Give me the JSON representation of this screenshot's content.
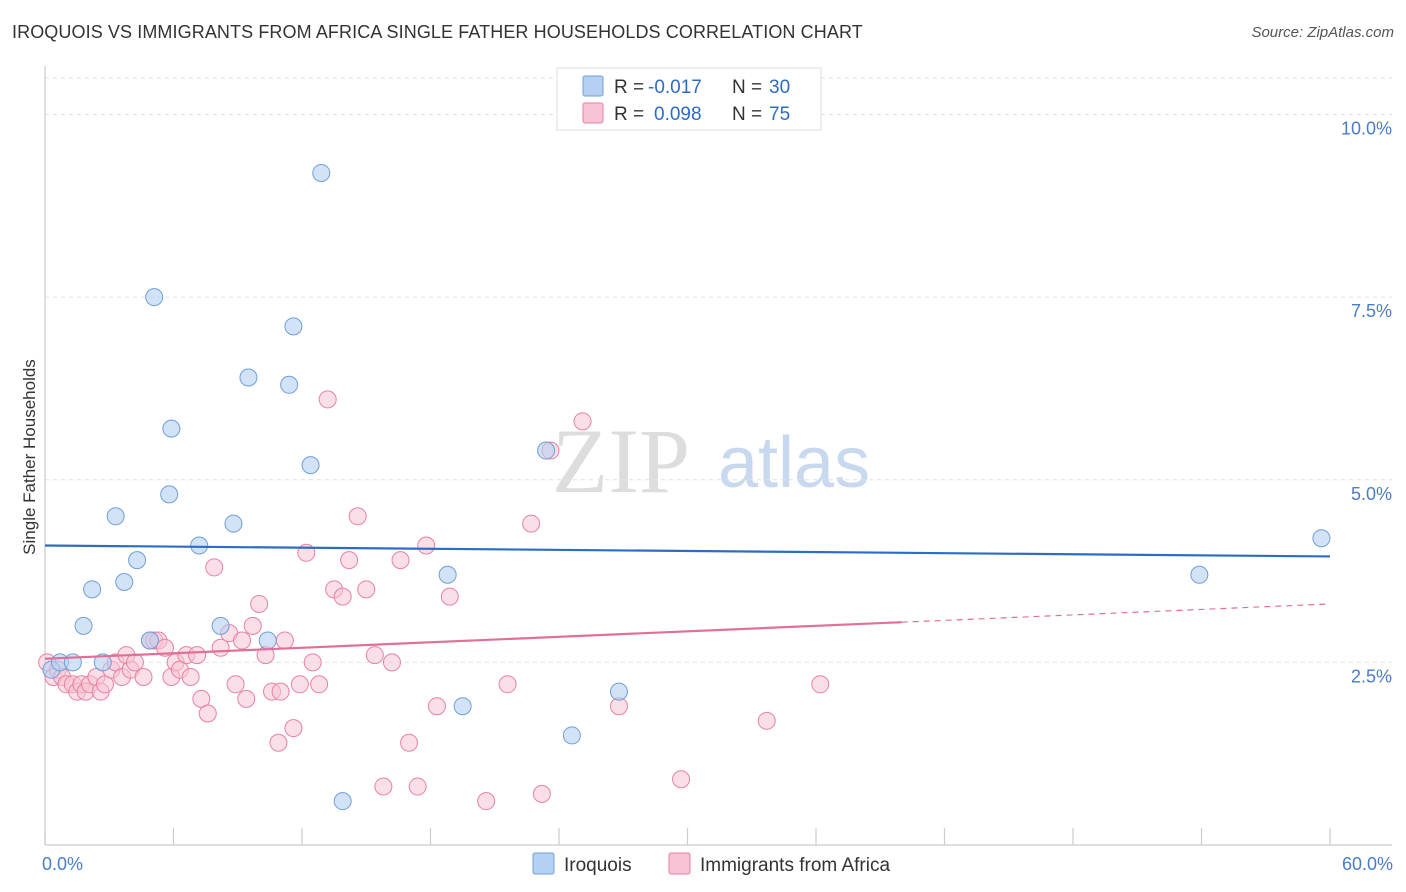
{
  "header": {
    "title": "IROQUOIS VS IMMIGRANTS FROM AFRICA SINGLE FATHER HOUSEHOLDS CORRELATION CHART",
    "source": "Source: ZipAtlas.com"
  },
  "watermark": {
    "zip": "ZIP",
    "atlas": "atlas"
  },
  "colors": {
    "iroquois_fill": "#b5d0f2",
    "iroquois_stroke": "#6f9fd8",
    "iroquois_line": "#2d6cc4",
    "africa_fill": "#f8c4d5",
    "africa_stroke": "#e8829f",
    "africa_line": "#e0709a",
    "tick_text": "#4a7cc7",
    "grid": "#e0e0e0"
  },
  "legend": {
    "rows": [
      {
        "r_label": "R = ",
        "r_value": "-0.017",
        "n_label": "N = ",
        "n_value": "30"
      },
      {
        "r_label": "R = ",
        "r_value": "0.098",
        "n_label": "N = ",
        "n_value": "75"
      }
    ]
  },
  "chart_data": {
    "type": "scatter",
    "title": "IROQUOIS VS IMMIGRANTS FROM AFRICA SINGLE FATHER HOUSEHOLDS CORRELATION CHART",
    "xlabel": "",
    "ylabel": "Single Father Households",
    "xlim": [
      0,
      60
    ],
    "ylim": [
      0,
      10.5
    ],
    "x_tick_labels": [
      {
        "value": 0,
        "label": "0.0%"
      },
      {
        "value": 60,
        "label": "60.0%"
      }
    ],
    "x_minor_ticks": [
      0,
      6,
      12,
      18,
      24,
      30,
      36,
      42,
      48,
      54,
      60
    ],
    "y_ticks": [
      {
        "value": 2.5,
        "label": "2.5%"
      },
      {
        "value": 5.0,
        "label": "5.0%"
      },
      {
        "value": 7.5,
        "label": "7.5%"
      },
      {
        "value": 10.0,
        "label": "10.0%"
      }
    ],
    "legend_position": "bottom",
    "series": [
      {
        "name": "Iroquois",
        "points": [
          [
            0.3,
            2.4
          ],
          [
            0.7,
            2.5
          ],
          [
            1.3,
            2.5
          ],
          [
            1.8,
            3.0
          ],
          [
            2.2,
            3.5
          ],
          [
            2.7,
            2.5
          ],
          [
            3.3,
            4.5
          ],
          [
            3.7,
            3.6
          ],
          [
            4.3,
            3.9
          ],
          [
            4.9,
            2.8
          ],
          [
            5.1,
            7.5
          ],
          [
            5.8,
            4.8
          ],
          [
            5.9,
            5.7
          ],
          [
            7.2,
            4.1
          ],
          [
            8.2,
            3.0
          ],
          [
            8.8,
            4.4
          ],
          [
            9.5,
            6.4
          ],
          [
            10.4,
            2.8
          ],
          [
            11.4,
            6.3
          ],
          [
            11.6,
            7.1
          ],
          [
            12.4,
            5.2
          ],
          [
            12.9,
            9.2
          ],
          [
            13.9,
            0.6
          ],
          [
            18.8,
            3.7
          ],
          [
            19.5,
            1.9
          ],
          [
            23.4,
            5.4
          ],
          [
            24.6,
            1.5
          ],
          [
            26.8,
            2.1
          ],
          [
            53.9,
            3.7
          ],
          [
            59.6,
            4.2
          ]
        ],
        "trend": {
          "x0": 0,
          "y0": 4.1,
          "x1": 60,
          "y1": 3.95
        }
      },
      {
        "name": "Immigrants from Africa",
        "points": [
          [
            0.1,
            2.5
          ],
          [
            0.4,
            2.3
          ],
          [
            0.6,
            2.4
          ],
          [
            0.8,
            2.3
          ],
          [
            1.0,
            2.2
          ],
          [
            1.3,
            2.2
          ],
          [
            1.5,
            2.1
          ],
          [
            1.7,
            2.2
          ],
          [
            1.9,
            2.1
          ],
          [
            2.1,
            2.2
          ],
          [
            2.4,
            2.3
          ],
          [
            2.6,
            2.1
          ],
          [
            2.8,
            2.2
          ],
          [
            3.1,
            2.4
          ],
          [
            3.3,
            2.5
          ],
          [
            3.6,
            2.3
          ],
          [
            3.8,
            2.6
          ],
          [
            4.0,
            2.4
          ],
          [
            4.2,
            2.5
          ],
          [
            4.6,
            2.3
          ],
          [
            4.9,
            2.8
          ],
          [
            5.1,
            2.8
          ],
          [
            5.3,
            2.8
          ],
          [
            5.6,
            2.7
          ],
          [
            5.9,
            2.3
          ],
          [
            6.1,
            2.5
          ],
          [
            6.3,
            2.4
          ],
          [
            6.6,
            2.6
          ],
          [
            6.8,
            2.3
          ],
          [
            7.1,
            2.6
          ],
          [
            7.3,
            2.0
          ],
          [
            7.6,
            1.8
          ],
          [
            7.9,
            3.8
          ],
          [
            8.2,
            2.7
          ],
          [
            8.6,
            2.9
          ],
          [
            8.9,
            2.2
          ],
          [
            9.2,
            2.8
          ],
          [
            9.4,
            2.0
          ],
          [
            9.7,
            3.0
          ],
          [
            10.0,
            3.3
          ],
          [
            10.3,
            2.6
          ],
          [
            10.6,
            2.1
          ],
          [
            10.9,
            1.4
          ],
          [
            11.2,
            2.8
          ],
          [
            11.6,
            1.6
          ],
          [
            11.9,
            2.2
          ],
          [
            12.2,
            4.0
          ],
          [
            12.5,
            2.5
          ],
          [
            12.8,
            2.2
          ],
          [
            13.2,
            6.1
          ],
          [
            13.5,
            3.5
          ],
          [
            13.9,
            3.4
          ],
          [
            14.2,
            3.9
          ],
          [
            14.6,
            4.5
          ],
          [
            15.0,
            3.5
          ],
          [
            15.4,
            2.6
          ],
          [
            15.8,
            0.8
          ],
          [
            16.2,
            2.5
          ],
          [
            16.6,
            3.9
          ],
          [
            17.0,
            1.4
          ],
          [
            17.4,
            0.8
          ],
          [
            17.8,
            4.1
          ],
          [
            18.3,
            1.9
          ],
          [
            18.9,
            3.4
          ],
          [
            20.6,
            0.6
          ],
          [
            21.6,
            2.2
          ],
          [
            22.7,
            4.4
          ],
          [
            23.2,
            0.7
          ],
          [
            23.6,
            5.4
          ],
          [
            25.1,
            5.8
          ],
          [
            26.8,
            1.9
          ],
          [
            29.7,
            0.9
          ],
          [
            33.7,
            1.7
          ],
          [
            36.2,
            2.2
          ],
          [
            11.0,
            2.1
          ]
        ],
        "trend": {
          "x0": 0,
          "y0": 2.55,
          "x1": 40,
          "y1": 3.05
        },
        "trend_dashed": {
          "x0": 40,
          "y0": 3.05,
          "x1": 60,
          "y1": 3.3
        }
      }
    ]
  }
}
